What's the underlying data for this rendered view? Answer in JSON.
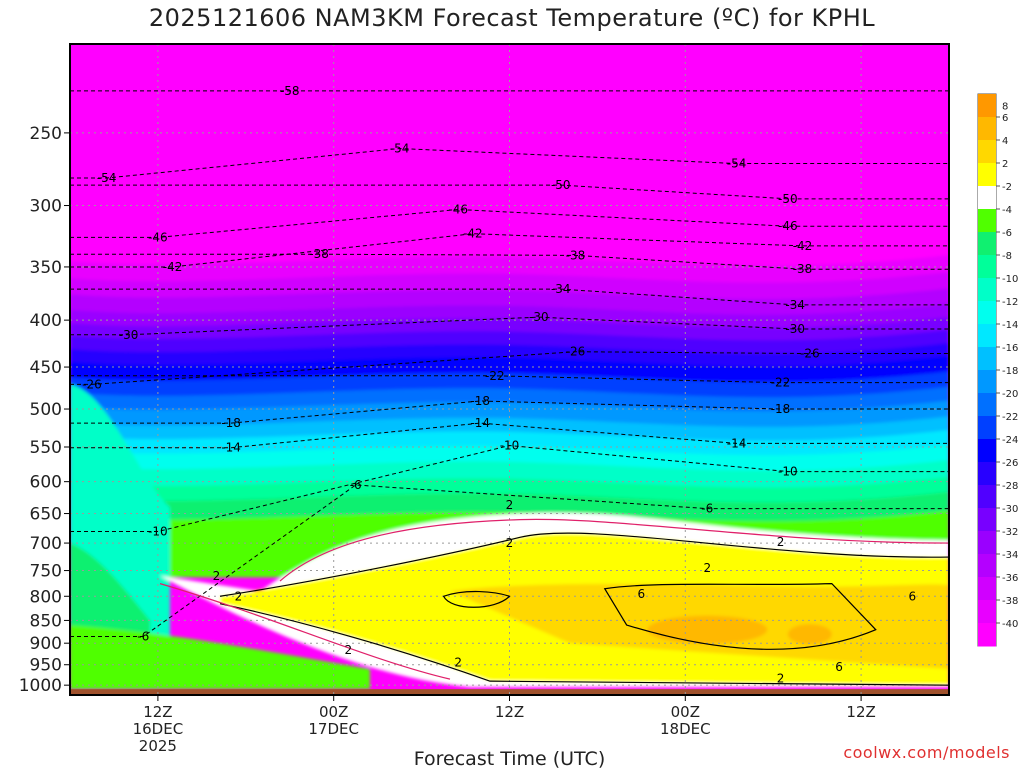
{
  "chart_data": {
    "type": "heatmap",
    "title": "2025121606 NAM3KM Forecast Temperature (ºC) for KPHL",
    "xlabel": "Forecast Time (UTC)",
    "ylabel": "",
    "y_scale": "log",
    "y_inverted": true,
    "ylim": [
      1025,
      200
    ],
    "y_ticks": [
      250,
      300,
      350,
      400,
      450,
      500,
      550,
      600,
      650,
      700,
      750,
      800,
      850,
      900,
      950,
      1000
    ],
    "x_ticks": [
      {
        "hour": 6,
        "label": [
          "12Z",
          "16DEC",
          "2025"
        ]
      },
      {
        "hour": 18,
        "label": [
          "00Z",
          "17DEC"
        ]
      },
      {
        "hour": 30,
        "label": [
          "12Z"
        ]
      },
      {
        "hour": 42,
        "label": [
          "00Z",
          "18DEC"
        ]
      },
      {
        "hour": 54,
        "label": [
          "12Z"
        ]
      }
    ],
    "xlim": [
      0,
      60
    ],
    "colorbar": {
      "levels": [
        -40,
        -38,
        -36,
        -34,
        -32,
        -30,
        -28,
        -26,
        -24,
        -22,
        -20,
        -18,
        -16,
        -14,
        -12,
        -10,
        -8,
        -6,
        -4,
        -2,
        2,
        4,
        6,
        8
      ],
      "labels": [
        "-40",
        "-38",
        "-36",
        "-34",
        "-32",
        "-30",
        "-28",
        "-26",
        "-24",
        "-22",
        "-20",
        "-18",
        "-16",
        "-14",
        "-12",
        "-10",
        "-8",
        "-6",
        "-4",
        "-2",
        "2",
        "4",
        "6",
        "8"
      ],
      "colors": [
        "#ff00ff",
        "#e800ff",
        "#d000ff",
        "#b400ff",
        "#9a00ff",
        "#7800ff",
        "#5000ff",
        "#2800ff",
        "#0000ff",
        "#0040ff",
        "#0070ff",
        "#0098ff",
        "#00c0ff",
        "#00e8ff",
        "#00ffee",
        "#00ffc8",
        "#00ff9a",
        "#10f070",
        "#50ff00",
        "#ffffff",
        "#ffff00",
        "#ffd800",
        "#ffb800",
        "#ff9800"
      ]
    },
    "contour_labels": [
      {
        "value": "-58",
        "hour": 15.0,
        "p": 225
      },
      {
        "value": "-54",
        "hour": 2.5,
        "p": 280
      },
      {
        "value": "-54",
        "hour": 22.5,
        "p": 260
      },
      {
        "value": "-54",
        "hour": 45.5,
        "p": 270
      },
      {
        "value": "-50",
        "hour": 33.5,
        "p": 285
      },
      {
        "value": "-50",
        "hour": 49.0,
        "p": 295
      },
      {
        "value": "-46",
        "hour": 6.0,
        "p": 325
      },
      {
        "value": "-46",
        "hour": 26.5,
        "p": 303
      },
      {
        "value": "-46",
        "hour": 49.0,
        "p": 316
      },
      {
        "value": "-42",
        "hour": 7.0,
        "p": 350
      },
      {
        "value": "-42",
        "hour": 27.5,
        "p": 322
      },
      {
        "value": "-42",
        "hour": 50.0,
        "p": 332
      },
      {
        "value": "-38",
        "hour": 17.0,
        "p": 339
      },
      {
        "value": "-38",
        "hour": 34.5,
        "p": 340
      },
      {
        "value": "-38",
        "hour": 50.0,
        "p": 352
      },
      {
        "value": "-34",
        "hour": 33.5,
        "p": 370
      },
      {
        "value": "-34",
        "hour": 49.5,
        "p": 385
      },
      {
        "value": "-30",
        "hour": 4.0,
        "p": 415
      },
      {
        "value": "-30",
        "hour": 32.0,
        "p": 397
      },
      {
        "value": "-30",
        "hour": 49.5,
        "p": 409
      },
      {
        "value": "-26",
        "hour": 1.5,
        "p": 470
      },
      {
        "value": "-26",
        "hour": 34.5,
        "p": 433
      },
      {
        "value": "-26",
        "hour": 50.5,
        "p": 435
      },
      {
        "value": "-22",
        "hour": 29.0,
        "p": 460
      },
      {
        "value": "-22",
        "hour": 48.5,
        "p": 468
      },
      {
        "value": "-18",
        "hour": 11.0,
        "p": 518
      },
      {
        "value": "-18",
        "hour": 28.0,
        "p": 490
      },
      {
        "value": "-18",
        "hour": 48.5,
        "p": 500
      },
      {
        "value": "-14",
        "hour": 11.0,
        "p": 551
      },
      {
        "value": "-14",
        "hour": 28.0,
        "p": 518
      },
      {
        "value": "-14",
        "hour": 45.5,
        "p": 545
      },
      {
        "value": "-10",
        "hour": 6.0,
        "p": 680
      },
      {
        "value": "-10",
        "hour": 30.0,
        "p": 548
      },
      {
        "value": "-10",
        "hour": 49.0,
        "p": 585
      },
      {
        "value": "-6",
        "hour": 5.0,
        "p": 885
      },
      {
        "value": "-6",
        "hour": 19.5,
        "p": 605
      },
      {
        "value": "-6",
        "hour": 43.5,
        "p": 642
      },
      {
        "value": "2",
        "hour": 10.0,
        "p": 760
      },
      {
        "value": "2",
        "hour": 11.5,
        "p": 800
      },
      {
        "value": "2",
        "hour": 19.0,
        "p": 915
      },
      {
        "value": "2",
        "hour": 26.5,
        "p": 945
      },
      {
        "value": "2",
        "hour": 30.0,
        "p": 636
      },
      {
        "value": "2",
        "hour": 30.0,
        "p": 700
      },
      {
        "value": "2",
        "hour": 43.5,
        "p": 745
      },
      {
        "value": "2",
        "hour": 48.5,
        "p": 698
      },
      {
        "value": "2",
        "hour": 48.5,
        "p": 983
      },
      {
        "value": "6",
        "hour": 39.0,
        "p": 795
      },
      {
        "value": "6",
        "hour": 52.5,
        "p": 955
      },
      {
        "value": "6",
        "hour": 57.5,
        "p": 800
      }
    ],
    "ground": "surface below ~1010 hPa shaded brown"
  },
  "credit": "coolwx.com/models"
}
